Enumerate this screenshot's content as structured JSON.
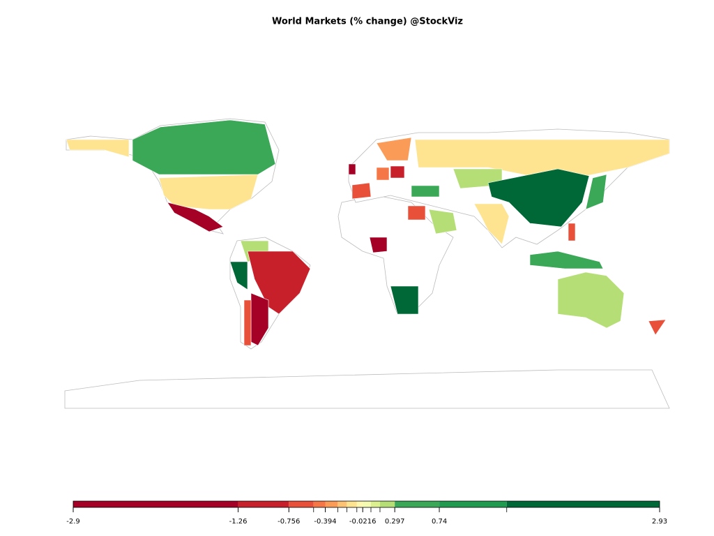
{
  "title": "World Markets (% change) @StockViz",
  "map": {
    "values": [
      -0.15,
      0.45,
      -1.3,
      0.25,
      1.5,
      -1.2,
      -2.5,
      -0.6,
      -2.8,
      -0.65,
      -0.4,
      -1.0,
      -0.1,
      -0.3,
      0.2,
      2.5,
      -0.1,
      0.2,
      -0.6,
      -2.6,
      1.8,
      0.2,
      -0.65,
      0.5,
      -0.7,
      0.6,
      0.3
    ]
  },
  "legend": {
    "lim": [
      -2.9,
      2.93
    ],
    "ticks": [
      -2.9,
      -1.26,
      -0.756,
      -0.394,
      -0.0216,
      0.297,
      0.74,
      2.93
    ],
    "breaks": [
      -2.9,
      -1.26,
      -0.756,
      -0.51,
      -0.394,
      -0.27,
      -0.18,
      -0.08,
      -0.0216,
      0.06,
      0.15,
      0.297,
      0.74,
      1.41,
      2.93
    ],
    "colors": [
      "#a50026",
      "#c8202b",
      "#e9503a",
      "#f57748",
      "#fa9c58",
      "#fdc274",
      "#fee491",
      "#fff6b0",
      "#f4fab0",
      "#dcf08f",
      "#b5df76",
      "#3aa857",
      "#1f9a4f",
      "#006837"
    ]
  }
}
